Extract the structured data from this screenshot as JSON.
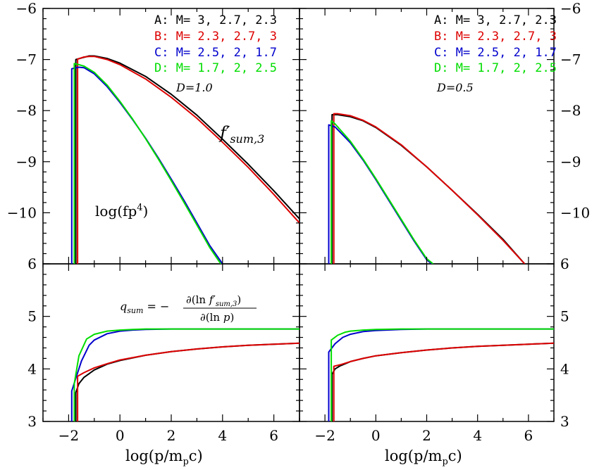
{
  "chart_data": [
    {
      "panel": "top-left",
      "type": "line",
      "annotation": "D=1.0",
      "ylabel": "log(fp⁴)",
      "curve_label": "f′sum,3",
      "xlim": [
        -3,
        7
      ],
      "ylim": [
        -11,
        -6
      ],
      "legend": [
        "A: M= 3, 2.7, 2.3",
        "B: M= 2.3, 2.7, 3",
        "C: M= 2.5, 2, 1.7",
        "D: M= 1.7, 2, 2.5"
      ],
      "series": [
        {
          "name": "A: M= 3, 2.7, 2.3",
          "color": "#000000",
          "x": [
            -1.72,
            -1.72,
            -1.5,
            -1.2,
            -1,
            -0.5,
            0,
            1,
            2,
            3,
            4,
            5,
            6,
            7
          ],
          "y": [
            -11,
            -7.0,
            -6.97,
            -6.93,
            -6.93,
            -6.98,
            -7.07,
            -7.33,
            -7.68,
            -8.09,
            -8.56,
            -9.05,
            -9.57,
            -10.12
          ]
        },
        {
          "name": "B: M= 2.3, 2.7, 3",
          "color": "#dd0000",
          "x": [
            -1.65,
            -1.65,
            -1.4,
            -1.2,
            -1,
            -0.5,
            0,
            1,
            2,
            3,
            4,
            5,
            6,
            7
          ],
          "y": [
            -11,
            -6.99,
            -6.95,
            -6.94,
            -6.94,
            -7.0,
            -7.1,
            -7.38,
            -7.74,
            -8.15,
            -8.62,
            -9.11,
            -9.64,
            -10.2
          ]
        },
        {
          "name": "C: M= 2.5, 2, 1.7",
          "color": "#0000cc",
          "x": [
            -1.88,
            -1.88,
            -1.6,
            -1.4,
            -1,
            -0.5,
            0,
            0.5,
            1,
            1.5,
            2,
            2.5,
            3,
            3.5,
            4
          ],
          "y": [
            -11,
            -7.18,
            -7.15,
            -7.16,
            -7.28,
            -7.53,
            -7.84,
            -8.18,
            -8.54,
            -8.93,
            -9.34,
            -9.76,
            -10.2,
            -10.64,
            -11
          ]
        },
        {
          "name": "D: M= 1.7, 2, 2.5",
          "color": "#00dd00",
          "x": [
            -1.78,
            -1.78,
            -1.6,
            -1.4,
            -1,
            -0.5,
            0,
            0.5,
            1,
            1.5,
            2,
            2.5,
            3,
            3.5,
            3.93
          ],
          "y": [
            -11,
            -7.08,
            -7.1,
            -7.13,
            -7.25,
            -7.5,
            -7.82,
            -8.17,
            -8.55,
            -8.95,
            -9.37,
            -9.8,
            -10.24,
            -10.68,
            -11
          ]
        }
      ]
    },
    {
      "panel": "top-right",
      "type": "line",
      "annotation": "D=0.5",
      "xlim": [
        -3,
        7
      ],
      "ylim": [
        -11,
        -6
      ],
      "legend": [
        "A: M= 3, 2.7, 2.3",
        "B: M= 2.3, 2.7, 3",
        "C: M= 2.5, 2, 1.7",
        "D: M= 1.7, 2, 2.5"
      ],
      "series": [
        {
          "name": "A: M= 3, 2.7, 2.3",
          "color": "#000000",
          "x": [
            -1.72,
            -1.72,
            -1.5,
            -1,
            -0.5,
            0,
            1,
            2,
            3,
            4,
            5,
            5.85
          ],
          "y": [
            -11,
            -8.08,
            -8.08,
            -8.12,
            -8.2,
            -8.33,
            -8.68,
            -9.1,
            -9.56,
            -10.03,
            -10.52,
            -11
          ]
        },
        {
          "name": "B: M= 2.3, 2.7, 3",
          "color": "#dd0000",
          "x": [
            -1.65,
            -1.65,
            -1.5,
            -1,
            -0.5,
            0,
            1,
            2,
            3,
            4,
            5,
            5.85
          ],
          "y": [
            -11,
            -8.06,
            -8.06,
            -8.1,
            -8.19,
            -8.32,
            -8.67,
            -9.1,
            -9.56,
            -10.04,
            -10.54,
            -11
          ]
        },
        {
          "name": "C: M= 2.5, 2, 1.7",
          "color": "#0000cc",
          "x": [
            -1.85,
            -1.85,
            -1.6,
            -1,
            -0.5,
            0,
            0.5,
            1,
            1.5,
            2,
            2.2
          ],
          "y": [
            -11,
            -8.28,
            -8.32,
            -8.63,
            -8.97,
            -9.35,
            -9.75,
            -10.15,
            -10.55,
            -10.92,
            -11
          ]
        },
        {
          "name": "D: M= 1.7, 2, 2.5",
          "color": "#00dd00",
          "x": [
            -1.75,
            -1.75,
            -1.6,
            -1,
            -0.5,
            0,
            0.5,
            1,
            1.5,
            2,
            2.25
          ],
          "y": [
            -11,
            -8.2,
            -8.26,
            -8.6,
            -8.95,
            -9.33,
            -9.73,
            -10.13,
            -10.53,
            -10.9,
            -11
          ]
        }
      ]
    },
    {
      "panel": "bottom-left",
      "type": "line",
      "xlabel": "log(p/mpc)",
      "formula": "qsum = −∂(ln f′sum,3) / ∂(ln p)",
      "xlim": [
        -3,
        7
      ],
      "ylim": [
        3,
        6
      ],
      "series": [
        {
          "name": "A: M= 3, 2.7, 2.3",
          "color": "#000000",
          "x": [
            -1.72,
            -1.72,
            -1.6,
            -1.4,
            -1,
            -0.5,
            0,
            1,
            2,
            3,
            4,
            5,
            6,
            7
          ],
          "y": [
            3,
            3.55,
            3.72,
            3.84,
            3.98,
            4.09,
            4.16,
            4.26,
            4.33,
            4.38,
            4.42,
            4.45,
            4.47,
            4.49
          ]
        },
        {
          "name": "B: M= 2.3, 2.7, 3",
          "color": "#dd0000",
          "x": [
            -1.65,
            -1.65,
            -1.4,
            -1,
            -0.5,
            0,
            1,
            2,
            3,
            4,
            5,
            6,
            7
          ],
          "y": [
            3,
            3.86,
            3.93,
            4.02,
            4.1,
            4.17,
            4.26,
            4.33,
            4.38,
            4.42,
            4.45,
            4.47,
            4.49
          ]
        },
        {
          "name": "C: M= 2.5, 2, 1.7",
          "color": "#0000cc",
          "x": [
            -1.88,
            -1.88,
            -1.7,
            -1.5,
            -1.2,
            -1,
            -0.5,
            0,
            0.5,
            1,
            2,
            3,
            4,
            5,
            6,
            7
          ],
          "y": [
            3,
            3.58,
            3.85,
            4.15,
            4.45,
            4.55,
            4.67,
            4.72,
            4.74,
            4.75,
            4.76,
            4.76,
            4.76,
            4.76,
            4.76,
            4.76
          ]
        },
        {
          "name": "D: M= 1.7, 2, 2.5",
          "color": "#00dd00",
          "x": [
            -1.78,
            -1.78,
            -1.6,
            -1.3,
            -1,
            -0.5,
            0,
            0.5,
            1,
            2,
            3,
            4,
            5,
            6,
            7
          ],
          "y": [
            3,
            3.72,
            4.25,
            4.57,
            4.66,
            4.72,
            4.74,
            4.75,
            4.76,
            4.76,
            4.76,
            4.76,
            4.76,
            4.76,
            4.76
          ]
        }
      ]
    },
    {
      "panel": "bottom-right",
      "type": "line",
      "xlabel": "log(p/mpc)",
      "xlim": [
        -3,
        7
      ],
      "ylim": [
        3,
        6
      ],
      "series": [
        {
          "name": "A: M= 3, 2.7, 2.3",
          "color": "#000000",
          "x": [
            -1.72,
            -1.72,
            -1.6,
            -1.4,
            -1,
            -0.5,
            0,
            1,
            2,
            3,
            4,
            5,
            6,
            7
          ],
          "y": [
            3,
            3.9,
            4.0,
            4.06,
            4.14,
            4.2,
            4.25,
            4.31,
            4.36,
            4.4,
            4.43,
            4.45,
            4.47,
            4.49
          ]
        },
        {
          "name": "B: M= 2.3, 2.7, 3",
          "color": "#dd0000",
          "x": [
            -1.65,
            -1.65,
            -1.4,
            -1,
            -0.5,
            0,
            1,
            2,
            3,
            4,
            5,
            6,
            7
          ],
          "y": [
            3,
            4.05,
            4.08,
            4.14,
            4.2,
            4.25,
            4.31,
            4.36,
            4.4,
            4.43,
            4.45,
            4.47,
            4.49
          ]
        },
        {
          "name": "C: M= 2.5, 2, 1.7",
          "color": "#0000cc",
          "x": [
            -1.85,
            -1.85,
            -1.6,
            -1.3,
            -1,
            -0.5,
            0,
            1,
            2,
            3,
            4,
            5,
            6,
            7
          ],
          "y": [
            3,
            4.32,
            4.48,
            4.6,
            4.66,
            4.71,
            4.73,
            4.75,
            4.76,
            4.76,
            4.76,
            4.76,
            4.76,
            4.76
          ]
        },
        {
          "name": "D: M= 1.7, 2, 2.5",
          "color": "#00dd00",
          "x": [
            -1.75,
            -1.75,
            -1.5,
            -1.2,
            -1,
            -0.5,
            0,
            1,
            2,
            3,
            4,
            5,
            6,
            7
          ],
          "y": [
            3,
            4.55,
            4.64,
            4.7,
            4.72,
            4.74,
            4.75,
            4.76,
            4.76,
            4.76,
            4.76,
            4.76,
            4.76,
            4.76
          ]
        }
      ]
    }
  ],
  "axes": {
    "x_ticks": [
      "−2",
      "0",
      "2",
      "4",
      "6"
    ],
    "x_tick_values": [
      -2,
      0,
      2,
      4,
      6
    ],
    "top_y_ticks": [
      "−6",
      "−7",
      "−8",
      "−9",
      "−10"
    ],
    "top_y_tick_values": [
      -6,
      -7,
      -8,
      -9,
      -10
    ],
    "bottom_y_ticks": [
      "6",
      "5",
      "4",
      "3"
    ],
    "bottom_y_tick_values": [
      6,
      5,
      4,
      3
    ]
  },
  "colors": {
    "A": "#000000",
    "B": "#dd0000",
    "C": "#0000cc",
    "D": "#00dd00"
  }
}
